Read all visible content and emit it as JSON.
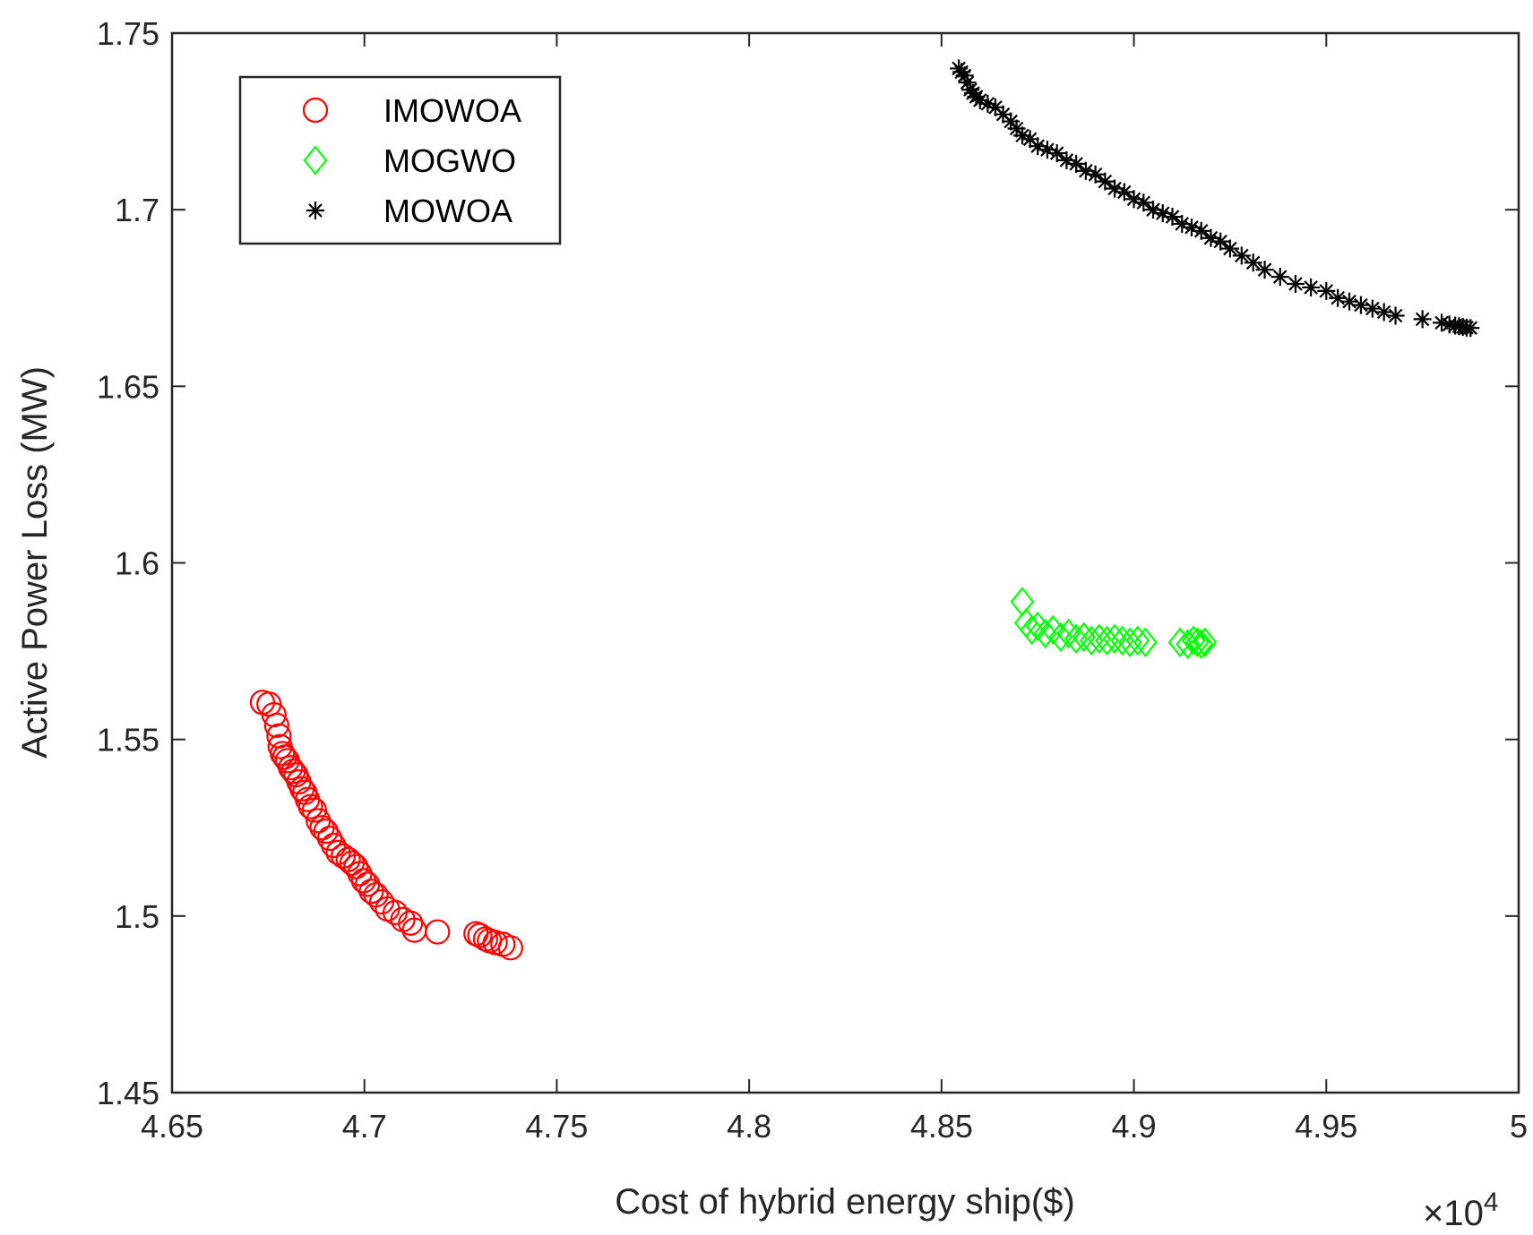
{
  "chart_data": {
    "type": "scatter",
    "title": "",
    "xlabel": "Cost of hybrid energy ship($)",
    "ylabel": "Active Power Loss (MW)",
    "x_exponent_label": "×10",
    "x_exponent_power": "4",
    "xlim": [
      4.65,
      5.0
    ],
    "ylim": [
      1.45,
      1.75
    ],
    "xticks": [
      4.65,
      4.7,
      4.75,
      4.8,
      4.85,
      4.9,
      4.95,
      5.0
    ],
    "xtick_labels": [
      "4.65",
      "4.7",
      "4.75",
      "4.8",
      "4.85",
      "4.9",
      "4.95",
      "5"
    ],
    "yticks": [
      1.45,
      1.5,
      1.55,
      1.6,
      1.65,
      1.7,
      1.75
    ],
    "ytick_labels": [
      "1.45",
      "1.5",
      "1.55",
      "1.6",
      "1.65",
      "1.7",
      "1.75"
    ],
    "legend_position": "top-left",
    "series": [
      {
        "name": "IMOWOA",
        "marker": "circle",
        "color": "#ff0000",
        "x": [
          4.6735,
          4.6752,
          4.6765,
          4.6772,
          4.6778,
          4.6781,
          4.6787,
          4.6793,
          4.68,
          4.6808,
          4.6815,
          4.6822,
          4.683,
          4.6838,
          4.6845,
          4.6852,
          4.686,
          4.687,
          4.688,
          4.689,
          4.69,
          4.691,
          4.692,
          4.6932,
          4.6945,
          4.6958,
          4.6968,
          4.6978,
          4.6988,
          4.6998,
          4.7008,
          4.7018,
          4.703,
          4.7045,
          4.706,
          4.708,
          4.71,
          4.712,
          4.713,
          4.719,
          4.729,
          4.73,
          4.7315,
          4.7325,
          4.734,
          4.736,
          4.738
        ],
        "y": [
          1.5605,
          1.56,
          1.557,
          1.554,
          1.551,
          1.548,
          1.546,
          1.545,
          1.544,
          1.542,
          1.541,
          1.54,
          1.538,
          1.536,
          1.535,
          1.533,
          1.531,
          1.53,
          1.527,
          1.525,
          1.524,
          1.522,
          1.52,
          1.518,
          1.517,
          1.516,
          1.515,
          1.514,
          1.512,
          1.51,
          1.509,
          1.507,
          1.506,
          1.504,
          1.502,
          1.501,
          1.499,
          1.498,
          1.496,
          1.4955,
          1.495,
          1.4945,
          1.4935,
          1.493,
          1.4925,
          1.492,
          1.491
        ]
      },
      {
        "name": "MOGWO",
        "marker": "diamond",
        "color": "#00ff00",
        "x": [
          4.871,
          4.872,
          4.8735,
          4.875,
          4.877,
          4.879,
          4.881,
          4.883,
          4.885,
          4.887,
          4.889,
          4.891,
          4.893,
          4.895,
          4.897,
          4.899,
          4.901,
          4.903,
          4.912,
          4.914,
          4.9155,
          4.9165,
          4.9175,
          4.9185
        ],
        "y": [
          1.589,
          1.583,
          1.581,
          1.582,
          1.58,
          1.581,
          1.579,
          1.58,
          1.5785,
          1.579,
          1.578,
          1.5785,
          1.578,
          1.5785,
          1.578,
          1.5775,
          1.578,
          1.5775,
          1.5775,
          1.577,
          1.578,
          1.5775,
          1.577,
          1.5775
        ]
      },
      {
        "name": "MOWOA",
        "marker": "asterisk",
        "color": "#000000",
        "x": [
          4.8545,
          4.8552,
          4.856,
          4.8567,
          4.8575,
          4.8582,
          4.859,
          4.86,
          4.862,
          4.864,
          4.866,
          4.868,
          4.8695,
          4.871,
          4.873,
          4.875,
          4.8775,
          4.88,
          4.8825,
          4.885,
          4.8875,
          4.89,
          4.8925,
          4.895,
          4.8975,
          4.9,
          4.9025,
          4.905,
          4.9075,
          4.91,
          4.9125,
          4.915,
          4.9175,
          4.92,
          4.9225,
          4.925,
          4.928,
          4.931,
          4.934,
          4.938,
          4.942,
          4.946,
          4.95,
          4.953,
          4.956,
          4.959,
          4.962,
          4.965,
          4.968,
          4.975,
          4.98,
          4.982,
          4.9835,
          4.9845,
          4.9855,
          4.9865,
          4.9875
        ],
        "y": [
          1.74,
          1.739,
          1.738,
          1.736,
          1.734,
          1.733,
          1.732,
          1.731,
          1.73,
          1.729,
          1.727,
          1.725,
          1.723,
          1.721,
          1.72,
          1.718,
          1.717,
          1.716,
          1.714,
          1.713,
          1.711,
          1.71,
          1.708,
          1.706,
          1.705,
          1.703,
          1.702,
          1.7,
          1.699,
          1.698,
          1.696,
          1.695,
          1.694,
          1.692,
          1.691,
          1.689,
          1.687,
          1.685,
          1.683,
          1.681,
          1.679,
          1.678,
          1.677,
          1.675,
          1.674,
          1.673,
          1.672,
          1.671,
          1.67,
          1.669,
          1.668,
          1.6675,
          1.6672,
          1.667,
          1.6668,
          1.6666,
          1.6665
        ]
      }
    ]
  }
}
